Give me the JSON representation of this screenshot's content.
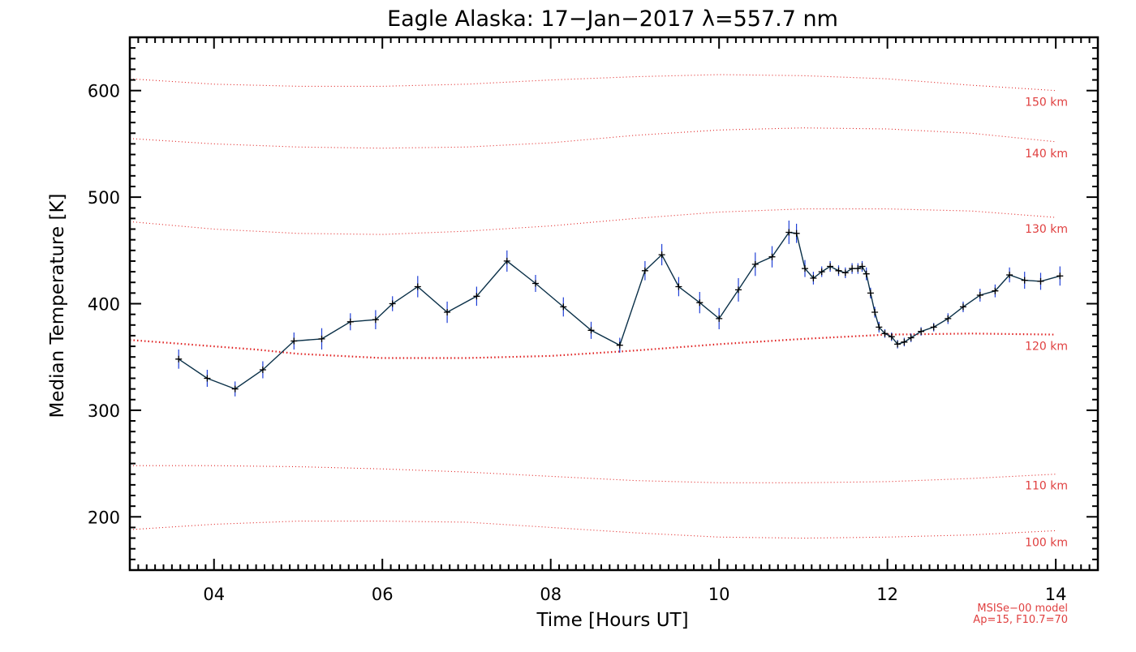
{
  "chart_data": {
    "type": "line",
    "title": "Eagle Alaska: 17−Jan−2017 λ=557.7 nm",
    "xlabel": "Time [Hours UT]",
    "ylabel": "Median Temperature [K]",
    "xlim": [
      3.0,
      14.5
    ],
    "ylim": [
      150,
      650
    ],
    "x_ticks": [
      4,
      6,
      8,
      10,
      12,
      14
    ],
    "x_tick_labels": [
      "04",
      "06",
      "08",
      "10",
      "12",
      "14"
    ],
    "y_ticks": [
      200,
      300,
      400,
      500,
      600
    ],
    "y_tick_labels": [
      "200",
      "300",
      "400",
      "500",
      "600"
    ],
    "grid": false,
    "colors": {
      "data_line": "#0a3048",
      "marker": "#000000",
      "error_bar": "#1f3fd6",
      "model": "#e02020",
      "model_text": "#e04040",
      "axis": "#000000"
    },
    "series": [
      {
        "x": [
          3.58,
          3.92,
          4.25,
          4.58,
          4.95,
          5.28,
          5.62,
          5.92,
          6.12,
          6.42,
          6.77,
          7.12,
          7.48,
          7.82,
          8.15,
          8.48,
          8.82,
          9.12,
          9.32,
          9.52,
          9.77,
          10.0,
          10.23,
          10.43,
          10.63,
          10.83,
          10.92,
          11.02,
          11.12,
          11.22,
          11.32,
          11.42,
          11.5,
          11.58,
          11.65,
          11.7,
          11.75,
          11.8,
          11.85,
          11.9,
          11.97,
          12.05,
          12.12,
          12.2,
          12.28,
          12.4,
          12.55,
          12.72,
          12.9,
          13.1,
          13.28,
          13.45,
          13.63,
          13.82,
          14.05
        ],
        "y": [
          348,
          330,
          320,
          338,
          365,
          367,
          383,
          385,
          400,
          416,
          392,
          407,
          440,
          419,
          397,
          375,
          361,
          431,
          446,
          416,
          401,
          386,
          413,
          437,
          444,
          467,
          466,
          433,
          424,
          430,
          435,
          431,
          429,
          433,
          433,
          435,
          428,
          410,
          392,
          378,
          372,
          369,
          362,
          364,
          368,
          374,
          378,
          386,
          397,
          408,
          412,
          427,
          422,
          421,
          426
        ],
        "error": [
          9,
          8,
          7,
          8,
          8,
          10,
          8,
          9,
          7,
          10,
          10,
          9,
          10,
          8,
          9,
          8,
          7,
          9,
          10,
          9,
          10,
          10,
          11,
          11,
          10,
          11,
          9,
          8,
          6,
          5,
          5,
          5,
          5,
          5,
          5,
          5,
          6,
          5,
          5,
          5,
          4,
          4,
          4,
          4,
          4,
          4,
          4,
          5,
          5,
          6,
          6,
          7,
          8,
          8,
          9
        ]
      }
    ],
    "model_curves": [
      {
        "label": "100 km",
        "x": [
          3.0,
          4.0,
          5.0,
          6.0,
          7.0,
          8.0,
          9.0,
          10.0,
          11.0,
          12.0,
          13.0,
          14.0
        ],
        "y": [
          188,
          193,
          196,
          196,
          195,
          190,
          185,
          181,
          180,
          181,
          183,
          187
        ]
      },
      {
        "label": "110 km",
        "x": [
          3.0,
          4.0,
          5.0,
          6.0,
          7.0,
          8.0,
          9.0,
          10.0,
          11.0,
          12.0,
          13.0,
          14.0
        ],
        "y": [
          248,
          248,
          247,
          245,
          242,
          238,
          234,
          232,
          232,
          233,
          236,
          240
        ]
      },
      {
        "label": "120 km",
        "x": [
          3.0,
          3.5,
          4.0,
          4.5,
          5.0,
          5.5,
          6.0,
          7.0,
          8.0,
          9.0,
          10.0,
          11.0,
          12.0,
          13.0,
          14.0
        ],
        "y": [
          366,
          363,
          360,
          357,
          353,
          351,
          349,
          349,
          351,
          356,
          362,
          367,
          371,
          372,
          371
        ]
      },
      {
        "label": "130 km",
        "x": [
          3.0,
          4.0,
          5.0,
          6.0,
          7.0,
          8.0,
          9.0,
          10.0,
          11.0,
          12.0,
          13.0,
          14.0
        ],
        "y": [
          477,
          470,
          466,
          465,
          468,
          473,
          480,
          486,
          489,
          489,
          487,
          481
        ]
      },
      {
        "label": "140 km",
        "x": [
          3.0,
          4.0,
          5.0,
          6.0,
          7.0,
          8.0,
          9.0,
          10.0,
          11.0,
          12.0,
          13.0,
          14.0
        ],
        "y": [
          555,
          550,
          547,
          546,
          547,
          551,
          558,
          563,
          565,
          564,
          560,
          552
        ]
      },
      {
        "label": "150 km",
        "x": [
          3.0,
          4.0,
          5.0,
          6.0,
          7.0,
          8.0,
          9.0,
          10.0,
          11.0,
          12.0,
          13.0,
          14.0
        ],
        "y": [
          611,
          606,
          604,
          604,
          606,
          610,
          613,
          615,
          614,
          611,
          605,
          600
        ]
      }
    ],
    "annotations": [
      "MSISe−00 model",
      "Ap=15, F10.7=70"
    ]
  }
}
